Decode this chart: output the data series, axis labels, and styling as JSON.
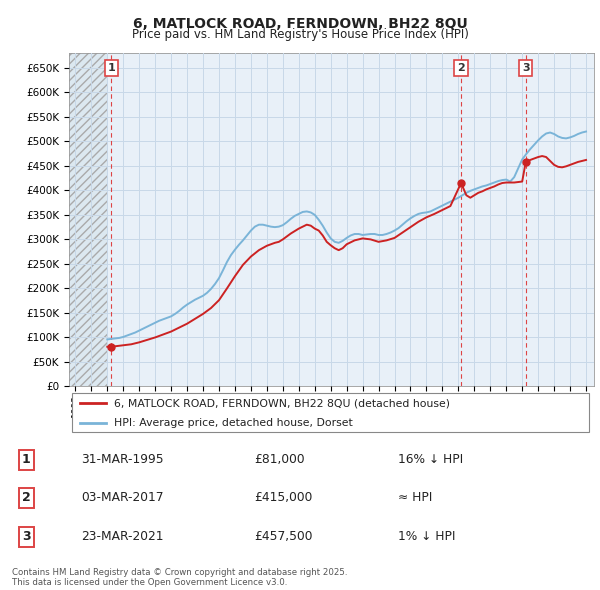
{
  "title": "6, MATLOCK ROAD, FERNDOWN, BH22 8QU",
  "subtitle": "Price paid vs. HM Land Registry's House Price Index (HPI)",
  "ylim": [
    0,
    680000
  ],
  "yticks": [
    0,
    50000,
    100000,
    150000,
    200000,
    250000,
    300000,
    350000,
    400000,
    450000,
    500000,
    550000,
    600000,
    650000
  ],
  "ytick_labels": [
    "£0",
    "£50K",
    "£100K",
    "£150K",
    "£200K",
    "£250K",
    "£300K",
    "£350K",
    "£400K",
    "£450K",
    "£500K",
    "£550K",
    "£600K",
    "£650K"
  ],
  "xlim_start": 1992.6,
  "xlim_end": 2025.5,
  "hpi_color": "#7ab4d8",
  "price_color": "#cc2222",
  "vline_color": "#dd4444",
  "grid_color": "#c8d8e8",
  "background_color": "#dce8f0",
  "chart_bg": "#e8f0f8",
  "legend_label_price": "6, MATLOCK ROAD, FERNDOWN, BH22 8QU (detached house)",
  "legend_label_hpi": "HPI: Average price, detached house, Dorset",
  "sales": [
    {
      "num": 1,
      "date_year": 1995.25,
      "price": 81000,
      "label_date": "31-MAR-1995",
      "label_price": "£81,000",
      "label_rel": "16% ↓ HPI"
    },
    {
      "num": 2,
      "date_year": 2017.17,
      "price": 415000,
      "label_date": "03-MAR-2017",
      "label_price": "£415,000",
      "label_rel": "≈ HPI"
    },
    {
      "num": 3,
      "date_year": 2021.22,
      "price": 457500,
      "label_date": "23-MAR-2021",
      "label_price": "£457,500",
      "label_rel": "1% ↓ HPI"
    }
  ],
  "footer": "Contains HM Land Registry data © Crown copyright and database right 2025.\nThis data is licensed under the Open Government Licence v3.0.",
  "hpi_data": {
    "years": [
      1995.0,
      1995.25,
      1995.5,
      1995.75,
      1996.0,
      1996.25,
      1996.5,
      1996.75,
      1997.0,
      1997.25,
      1997.5,
      1997.75,
      1998.0,
      1998.25,
      1998.5,
      1998.75,
      1999.0,
      1999.25,
      1999.5,
      1999.75,
      2000.0,
      2000.25,
      2000.5,
      2000.75,
      2001.0,
      2001.25,
      2001.5,
      2001.75,
      2002.0,
      2002.25,
      2002.5,
      2002.75,
      2003.0,
      2003.25,
      2003.5,
      2003.75,
      2004.0,
      2004.25,
      2004.5,
      2004.75,
      2005.0,
      2005.25,
      2005.5,
      2005.75,
      2006.0,
      2006.25,
      2006.5,
      2006.75,
      2007.0,
      2007.25,
      2007.5,
      2007.75,
      2008.0,
      2008.25,
      2008.5,
      2008.75,
      2009.0,
      2009.25,
      2009.5,
      2009.75,
      2010.0,
      2010.25,
      2010.5,
      2010.75,
      2011.0,
      2011.25,
      2011.5,
      2011.75,
      2012.0,
      2012.25,
      2012.5,
      2012.75,
      2013.0,
      2013.25,
      2013.5,
      2013.75,
      2014.0,
      2014.25,
      2014.5,
      2014.75,
      2015.0,
      2015.25,
      2015.5,
      2015.75,
      2016.0,
      2016.25,
      2016.5,
      2016.75,
      2017.0,
      2017.25,
      2017.5,
      2017.75,
      2018.0,
      2018.25,
      2018.5,
      2018.75,
      2019.0,
      2019.25,
      2019.5,
      2019.75,
      2020.0,
      2020.25,
      2020.5,
      2020.75,
      2021.0,
      2021.25,
      2021.5,
      2021.75,
      2022.0,
      2022.25,
      2022.5,
      2022.75,
      2023.0,
      2023.25,
      2023.5,
      2023.75,
      2024.0,
      2024.25,
      2024.5,
      2024.75,
      2025.0
    ],
    "values": [
      96000,
      97000,
      98000,
      99000,
      101000,
      104000,
      107000,
      110000,
      114000,
      118000,
      122000,
      126000,
      130000,
      134000,
      137000,
      140000,
      143000,
      148000,
      154000,
      161000,
      167000,
      172000,
      177000,
      181000,
      185000,
      191000,
      199000,
      209000,
      221000,
      237000,
      254000,
      268000,
      279000,
      289000,
      298000,
      308000,
      318000,
      326000,
      330000,
      330000,
      328000,
      326000,
      325000,
      326000,
      329000,
      335000,
      342000,
      348000,
      352000,
      356000,
      357000,
      355000,
      350000,
      340000,
      328000,
      314000,
      302000,
      295000,
      293000,
      297000,
      303000,
      308000,
      311000,
      311000,
      309000,
      310000,
      311000,
      311000,
      309000,
      309000,
      311000,
      314000,
      318000,
      323000,
      330000,
      337000,
      343000,
      348000,
      352000,
      354000,
      355000,
      357000,
      361000,
      365000,
      369000,
      373000,
      377000,
      381000,
      385000,
      390000,
      395000,
      399000,
      402000,
      405000,
      408000,
      410000,
      413000,
      416000,
      419000,
      421000,
      422000,
      418000,
      427000,
      445000,
      463000,
      474000,
      484000,
      493000,
      502000,
      510000,
      516000,
      518000,
      515000,
      510000,
      507000,
      506000,
      508000,
      511000,
      515000,
      518000,
      520000
    ]
  },
  "price_data": {
    "years": [
      1995.0,
      1995.25,
      1995.5,
      1996.0,
      1996.5,
      1997.0,
      1997.5,
      1998.0,
      1998.5,
      1999.0,
      1999.5,
      2000.0,
      2000.5,
      2001.0,
      2001.5,
      2002.0,
      2002.5,
      2003.0,
      2003.5,
      2004.0,
      2004.5,
      2005.0,
      2005.25,
      2005.5,
      2005.75,
      2006.0,
      2006.5,
      2007.0,
      2007.25,
      2007.5,
      2007.75,
      2008.0,
      2008.25,
      2008.5,
      2008.75,
      2009.0,
      2009.25,
      2009.5,
      2009.75,
      2010.0,
      2010.5,
      2011.0,
      2011.5,
      2012.0,
      2012.5,
      2013.0,
      2013.5,
      2014.0,
      2014.5,
      2015.0,
      2015.5,
      2016.0,
      2016.5,
      2017.17,
      2017.5,
      2017.75,
      2018.0,
      2018.25,
      2018.5,
      2018.75,
      2019.0,
      2019.25,
      2019.5,
      2019.75,
      2020.0,
      2020.5,
      2021.0,
      2021.22,
      2021.5,
      2021.75,
      2022.0,
      2022.25,
      2022.5,
      2022.75,
      2023.0,
      2023.25,
      2023.5,
      2023.75,
      2024.0,
      2024.25,
      2024.5,
      2024.75,
      2025.0
    ],
    "values": [
      81000,
      81000,
      82000,
      84000,
      86000,
      90000,
      95000,
      100000,
      106000,
      112000,
      120000,
      128000,
      138000,
      148000,
      160000,
      176000,
      200000,
      225000,
      248000,
      265000,
      278000,
      287000,
      290000,
      293000,
      295000,
      300000,
      312000,
      322000,
      326000,
      330000,
      328000,
      322000,
      318000,
      308000,
      295000,
      288000,
      282000,
      278000,
      282000,
      290000,
      298000,
      302000,
      300000,
      295000,
      298000,
      303000,
      314000,
      325000,
      336000,
      345000,
      352000,
      360000,
      368000,
      415000,
      390000,
      385000,
      390000,
      395000,
      398000,
      402000,
      405000,
      408000,
      412000,
      415000,
      416000,
      416000,
      418000,
      457500,
      462000,
      465000,
      468000,
      470000,
      468000,
      460000,
      452000,
      448000,
      447000,
      449000,
      452000,
      455000,
      458000,
      460000,
      462000
    ]
  }
}
